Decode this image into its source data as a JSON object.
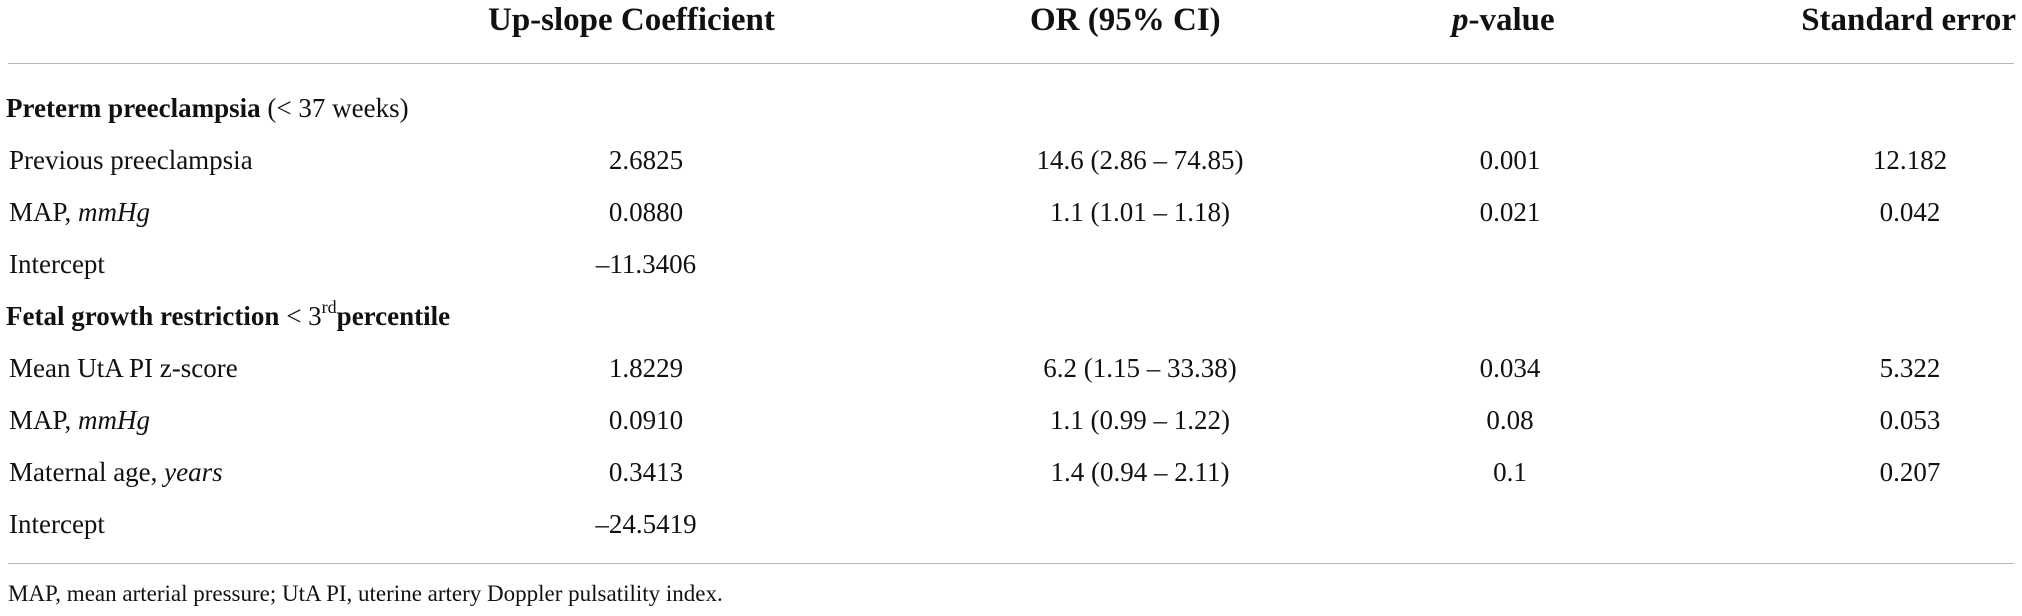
{
  "table": {
    "headers": {
      "coefficient": "Up-slope Coefficient",
      "or": "OR (95% CI)",
      "p_italic": "p",
      "p_rest": "-value",
      "se": "Standard error"
    },
    "sections": [
      {
        "title_bold": "Preterm preeclampsia",
        "title_rest": " (< 37 weeks)",
        "rows": [
          {
            "label": "Previous preeclampsia",
            "unit": "",
            "coefficient": "2.6825",
            "or": "14.6 (2.86 – 74.85)",
            "p": "0.001",
            "se": "12.182"
          },
          {
            "label": "MAP, ",
            "unit": "mmHg",
            "coefficient": "0.0880",
            "or": "1.1 (1.01 – 1.18)",
            "p": "0.021",
            "se": "0.042"
          },
          {
            "label": "Intercept",
            "unit": "",
            "coefficient": "–11.3406",
            "or": "",
            "p": "",
            "se": ""
          }
        ]
      },
      {
        "title_bold": "Fetal growth restriction",
        "title_mid": " < 3",
        "title_sup": "rd",
        "title_bold2": "percentile",
        "rows": [
          {
            "label": "Mean UtA PI z-score",
            "unit": "",
            "coefficient": "1.8229",
            "or": "6.2 (1.15 – 33.38)",
            "p": "0.034",
            "se": "5.322"
          },
          {
            "label": "MAP, ",
            "unit": "mmHg",
            "coefficient": "0.0910",
            "or": "1.1 (0.99 – 1.22)",
            "p": "0.08",
            "se": "0.053"
          },
          {
            "label": "Maternal age, ",
            "unit": "years",
            "coefficient": "0.3413",
            "or": "1.4 (0.94 – 2.11)",
            "p": "0.1",
            "se": "0.207"
          },
          {
            "label": "Intercept",
            "unit": "",
            "coefficient": "–24.5419",
            "or": "",
            "p": "",
            "se": ""
          }
        ]
      }
    ],
    "footnote": "MAP, mean arterial pressure; UtA PI, uterine artery Doppler pulsatility index."
  }
}
